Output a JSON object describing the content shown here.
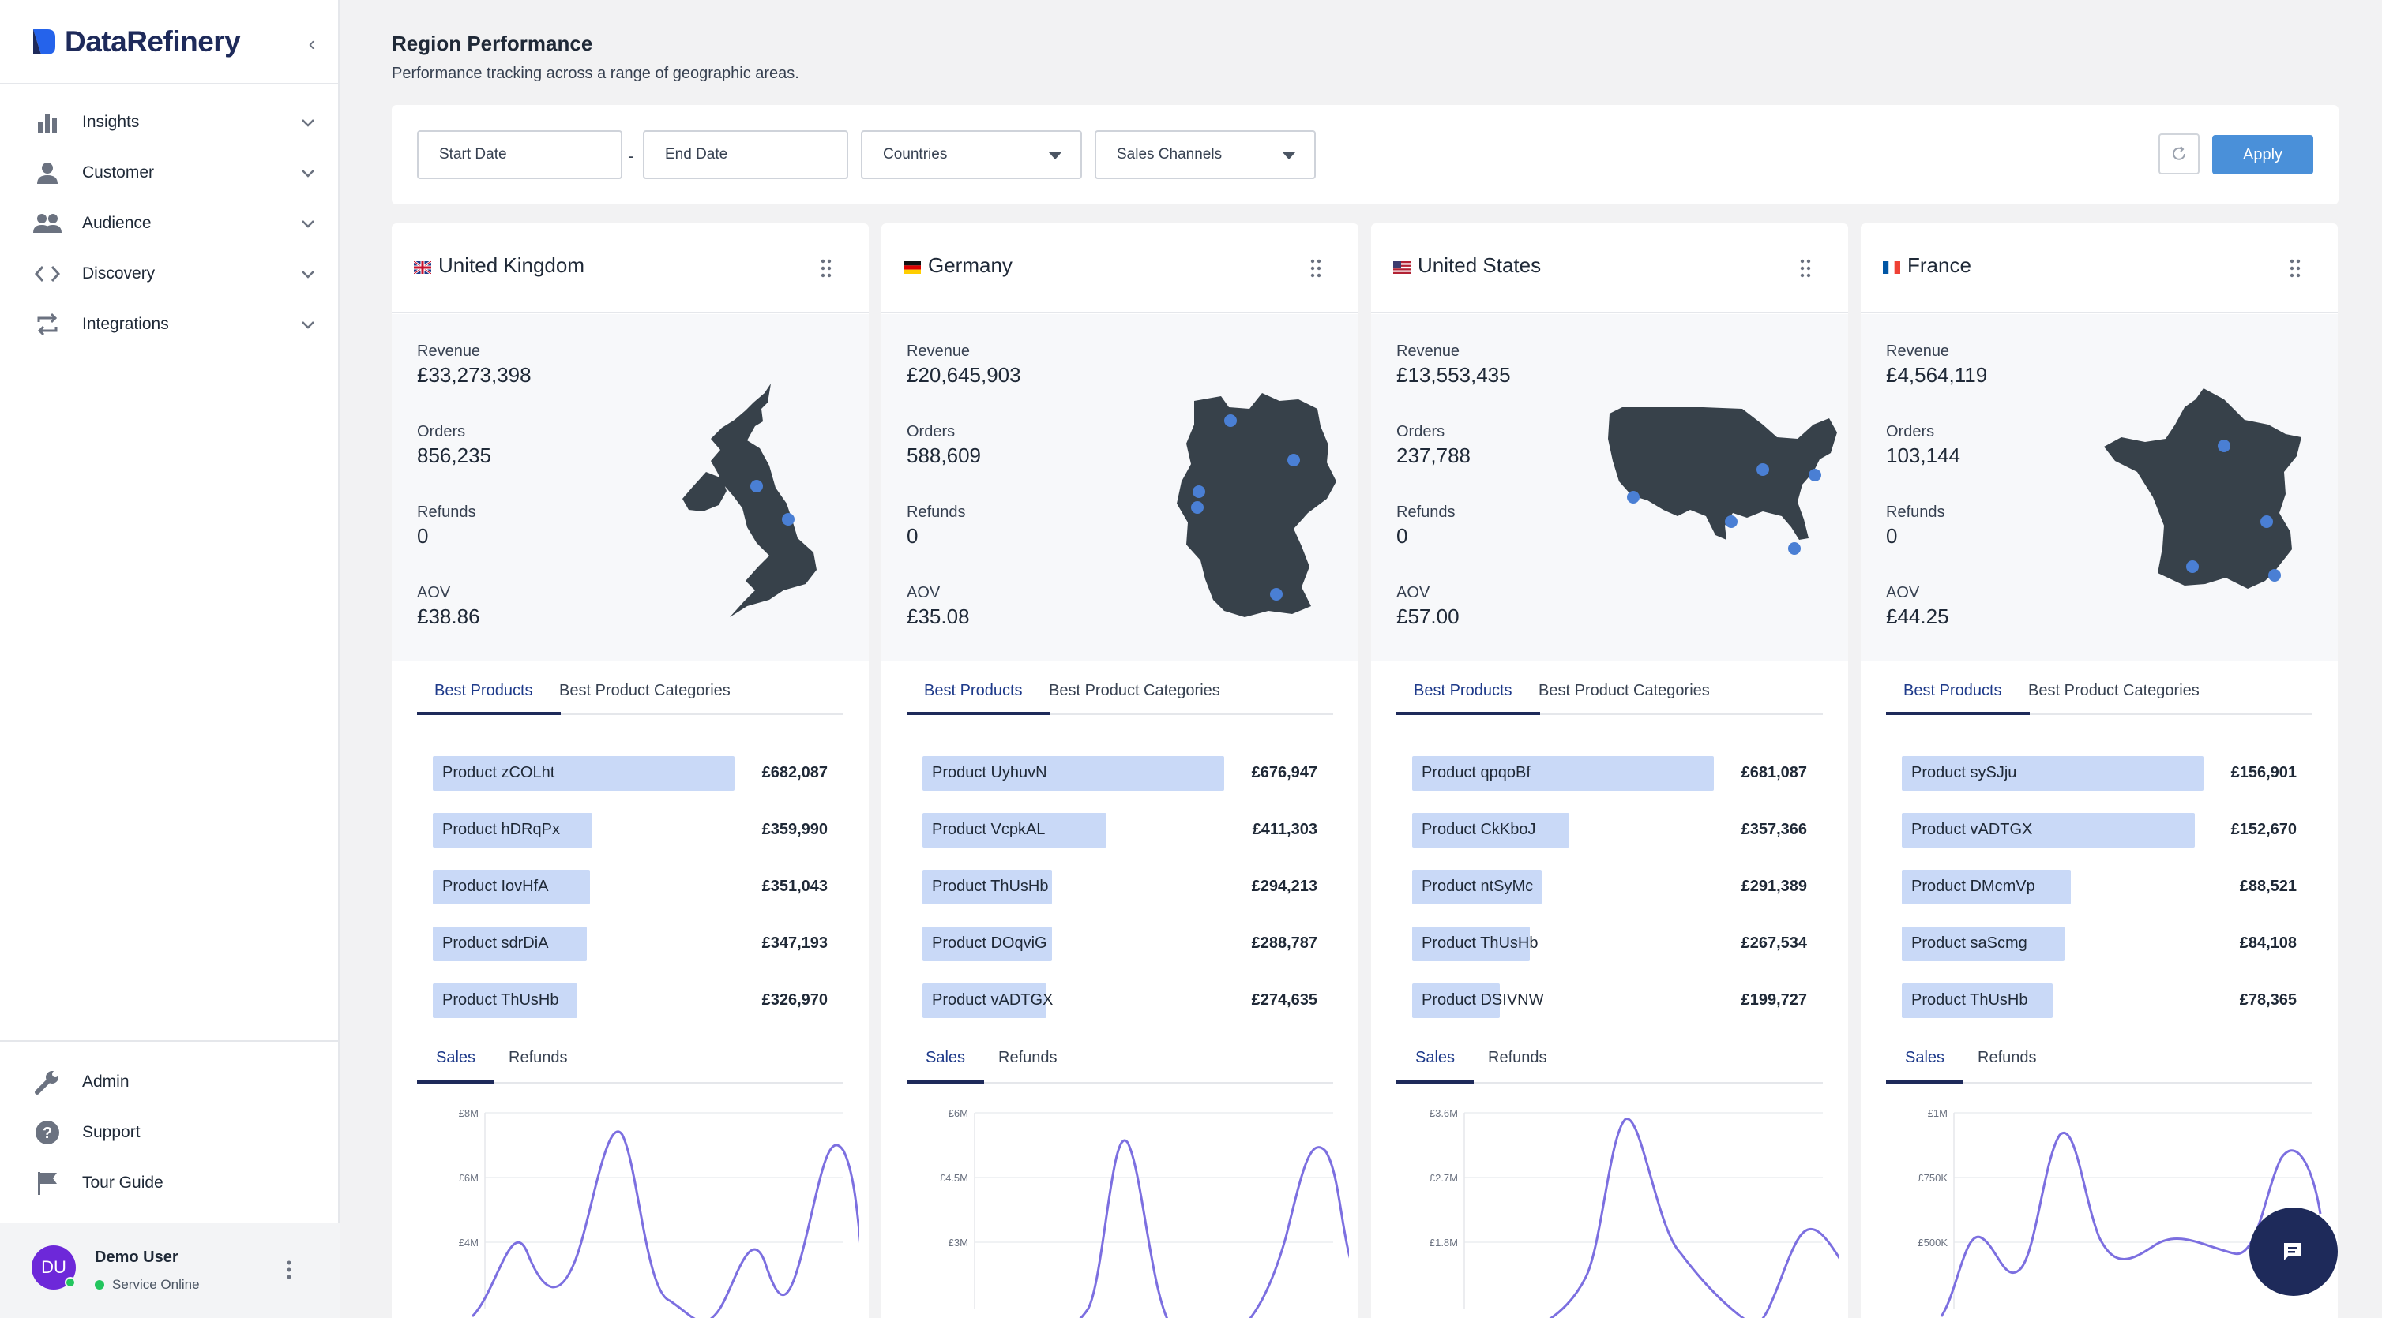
{
  "app": {
    "name": "DataRefinery"
  },
  "sidebar": {
    "items": [
      {
        "label": "Insights",
        "icon": "bar-chart-icon"
      },
      {
        "label": "Customer",
        "icon": "person-icon"
      },
      {
        "label": "Audience",
        "icon": "group-icon"
      },
      {
        "label": "Discovery",
        "icon": "code-icon"
      },
      {
        "label": "Integrations",
        "icon": "repeat-icon"
      }
    ],
    "bottom": [
      {
        "label": "Admin",
        "icon": "wrench-icon"
      },
      {
        "label": "Support",
        "icon": "help-icon"
      },
      {
        "label": "Tour Guide",
        "icon": "flag-icon"
      }
    ],
    "user": {
      "initials": "DU",
      "name": "Demo User",
      "status": "Service Online"
    }
  },
  "page": {
    "title": "Region Performance",
    "subtitle": "Performance tracking across a range of geographic areas."
  },
  "filters": {
    "start_date": "Start Date",
    "end_date": "End Date",
    "countries": "Countries",
    "sales_channels": "Sales Channels",
    "apply": "Apply",
    "separator": "-"
  },
  "labels": {
    "revenue": "Revenue",
    "orders": "Orders",
    "refunds": "Refunds",
    "aov": "AOV",
    "tab_products": "Best Products",
    "tab_categories": "Best Product Categories",
    "tab_sales": "Sales",
    "tab_refunds": "Refunds"
  },
  "cards": [
    {
      "name": "United Kingdom",
      "flag": "uk-flag-icon",
      "revenue": "£33,273,398",
      "orders": "856,235",
      "refunds": "0",
      "aov": "£38.86",
      "products": [
        {
          "name": "Product zCOLht",
          "value": "£682,087",
          "share": 1.0
        },
        {
          "name": "Product hDRqPx",
          "value": "£359,990",
          "share": 0.53
        },
        {
          "name": "Product IovHfA",
          "value": "£351,043",
          "share": 0.52
        },
        {
          "name": "Product sdrDiA",
          "value": "£347,193",
          "share": 0.51
        },
        {
          "name": "Product ThUsHb",
          "value": "£326,970",
          "share": 0.48
        }
      ],
      "y_ticks": [
        "£8M",
        "£6M",
        "£4M"
      ]
    },
    {
      "name": "Germany",
      "flag": "de-flag-icon",
      "revenue": "£20,645,903",
      "orders": "588,609",
      "refunds": "0",
      "aov": "£35.08",
      "products": [
        {
          "name": "Product UyhuvN",
          "value": "£676,947",
          "share": 1.0
        },
        {
          "name": "Product VcpkAL",
          "value": "£411,303",
          "share": 0.61
        },
        {
          "name": "Product ThUsHb",
          "value": "£294,213",
          "share": 0.43
        },
        {
          "name": "Product DOqviG",
          "value": "£288,787",
          "share": 0.43
        },
        {
          "name": "Product vADTGX",
          "value": "£274,635",
          "share": 0.41
        }
      ],
      "y_ticks": [
        "£6M",
        "£4.5M",
        "£3M"
      ]
    },
    {
      "name": "United States",
      "flag": "us-flag-icon",
      "revenue": "£13,553,435",
      "orders": "237,788",
      "refunds": "0",
      "aov": "£57.00",
      "products": [
        {
          "name": "Product qpqoBf",
          "value": "£681,087",
          "share": 1.0
        },
        {
          "name": "Product CkKboJ",
          "value": "£357,366",
          "share": 0.52
        },
        {
          "name": "Product ntSyMc",
          "value": "£291,389",
          "share": 0.43
        },
        {
          "name": "Product ThUsHb",
          "value": "£267,534",
          "share": 0.39
        },
        {
          "name": "Product DSIVNW",
          "value": "£199,727",
          "share": 0.29
        }
      ],
      "y_ticks": [
        "£3.6M",
        "£2.7M",
        "£1.8M"
      ]
    },
    {
      "name": "France",
      "flag": "fr-flag-icon",
      "revenue": "£4,564,119",
      "orders": "103,144",
      "refunds": "0",
      "aov": "£44.25",
      "products": [
        {
          "name": "Product sySJju",
          "value": "£156,901",
          "share": 1.0
        },
        {
          "name": "Product vADTGX",
          "value": "£152,670",
          "share": 0.97
        },
        {
          "name": "Product DMcmVp",
          "value": "£88,521",
          "share": 0.56
        },
        {
          "name": "Product saScmg",
          "value": "£84,108",
          "share": 0.54
        },
        {
          "name": "Product ThUsHb",
          "value": "£78,365",
          "share": 0.5
        }
      ],
      "y_ticks": [
        "£1M",
        "£750K",
        "£500K"
      ]
    }
  ],
  "colors": {
    "accent": "#4a90d9",
    "brand": "#1e2a5a",
    "bar": "#c9d9f7",
    "line": "#7c6fe0",
    "map": "#37414a",
    "map_dot": "#4a7fd4"
  }
}
